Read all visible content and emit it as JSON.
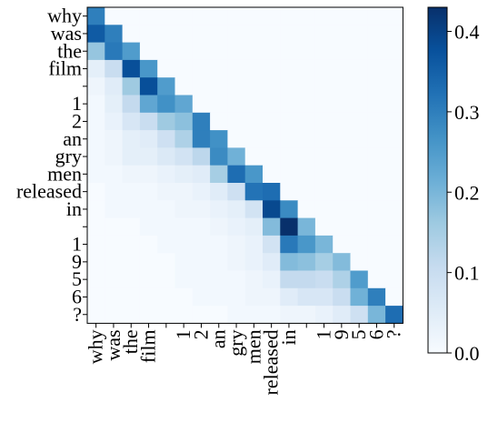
{
  "chart_data": {
    "type": "heatmap",
    "title": "",
    "xlabel": "",
    "ylabel": "",
    "tokens": [
      "why",
      "was",
      "the",
      "film",
      "",
      "1",
      "2",
      "an",
      "gry",
      "men",
      "released",
      "in",
      "",
      "1",
      "9",
      "5",
      "6",
      "?"
    ],
    "colormap": "Blues",
    "colorbar": {
      "range": [
        0.0,
        0.43
      ],
      "ticks": [
        0.0,
        0.1,
        0.2,
        0.3,
        0.4
      ],
      "tick_labels": [
        "0.0",
        "0.1",
        "0.2",
        "0.3",
        "0.4"
      ]
    },
    "values": [
      [
        0.3,
        0,
        0,
        0,
        0,
        0,
        0,
        0,
        0,
        0,
        0,
        0,
        0,
        0,
        0,
        0,
        0,
        0
      ],
      [
        0.36,
        0.3,
        0,
        0,
        0,
        0,
        0,
        0,
        0,
        0,
        0,
        0,
        0,
        0,
        0,
        0,
        0,
        0
      ],
      [
        0.17,
        0.31,
        0.25,
        0,
        0,
        0,
        0,
        0,
        0,
        0,
        0,
        0,
        0,
        0,
        0,
        0,
        0,
        0
      ],
      [
        0.04,
        0.1,
        0.38,
        0.26,
        0,
        0,
        0,
        0,
        0,
        0,
        0,
        0,
        0,
        0,
        0,
        0,
        0,
        0
      ],
      [
        0.02,
        0.05,
        0.16,
        0.38,
        0.25,
        0,
        0,
        0,
        0,
        0,
        0,
        0,
        0,
        0,
        0,
        0,
        0,
        0
      ],
      [
        0.01,
        0.04,
        0.11,
        0.23,
        0.27,
        0.23,
        0,
        0,
        0,
        0,
        0,
        0,
        0,
        0,
        0,
        0,
        0,
        0
      ],
      [
        0.01,
        0.03,
        0.07,
        0.1,
        0.16,
        0.18,
        0.3,
        0,
        0,
        0,
        0,
        0,
        0,
        0,
        0,
        0,
        0,
        0
      ],
      [
        0.01,
        0.02,
        0.04,
        0.05,
        0.09,
        0.14,
        0.3,
        0.27,
        0,
        0,
        0,
        0,
        0,
        0,
        0,
        0,
        0,
        0
      ],
      [
        0.01,
        0.02,
        0.04,
        0.04,
        0.06,
        0.08,
        0.12,
        0.28,
        0.21,
        0,
        0,
        0,
        0,
        0,
        0,
        0,
        0,
        0
      ],
      [
        0.01,
        0.01,
        0.02,
        0.02,
        0.03,
        0.04,
        0.05,
        0.15,
        0.33,
        0.26,
        0,
        0,
        0,
        0,
        0,
        0,
        0,
        0
      ],
      [
        0.0,
        0.01,
        0.01,
        0.01,
        0.02,
        0.02,
        0.03,
        0.05,
        0.09,
        0.32,
        0.33,
        0,
        0,
        0,
        0,
        0,
        0,
        0
      ],
      [
        0.0,
        0.01,
        0.01,
        0.01,
        0.01,
        0.02,
        0.02,
        0.03,
        0.04,
        0.08,
        0.39,
        0.28,
        0,
        0,
        0,
        0,
        0,
        0
      ],
      [
        0.0,
        0.0,
        0.0,
        0.01,
        0.01,
        0.01,
        0.01,
        0.02,
        0.03,
        0.04,
        0.19,
        0.43,
        0.2,
        0,
        0,
        0,
        0,
        0
      ],
      [
        0.0,
        0.0,
        0.0,
        0.0,
        0.01,
        0.01,
        0.01,
        0.01,
        0.02,
        0.03,
        0.08,
        0.31,
        0.26,
        0.2,
        0,
        0,
        0,
        0
      ],
      [
        0.0,
        0.0,
        0.0,
        0.0,
        0.0,
        0.01,
        0.01,
        0.01,
        0.02,
        0.03,
        0.05,
        0.19,
        0.18,
        0.15,
        0.19,
        0,
        0,
        0
      ],
      [
        0.0,
        0.0,
        0.0,
        0.0,
        0.0,
        0.01,
        0.01,
        0.01,
        0.01,
        0.02,
        0.03,
        0.11,
        0.11,
        0.1,
        0.14,
        0.25,
        0,
        0
      ],
      [
        0.0,
        0.0,
        0.0,
        0.0,
        0.0,
        0.0,
        0.01,
        0.01,
        0.01,
        0.02,
        0.02,
        0.05,
        0.07,
        0.07,
        0.1,
        0.21,
        0.3,
        0
      ],
      [
        0.0,
        0.0,
        0.0,
        0.0,
        0.0,
        0.0,
        0.0,
        0.0,
        0.01,
        0.01,
        0.01,
        0.02,
        0.02,
        0.03,
        0.05,
        0.09,
        0.2,
        0.33
      ]
    ]
  }
}
